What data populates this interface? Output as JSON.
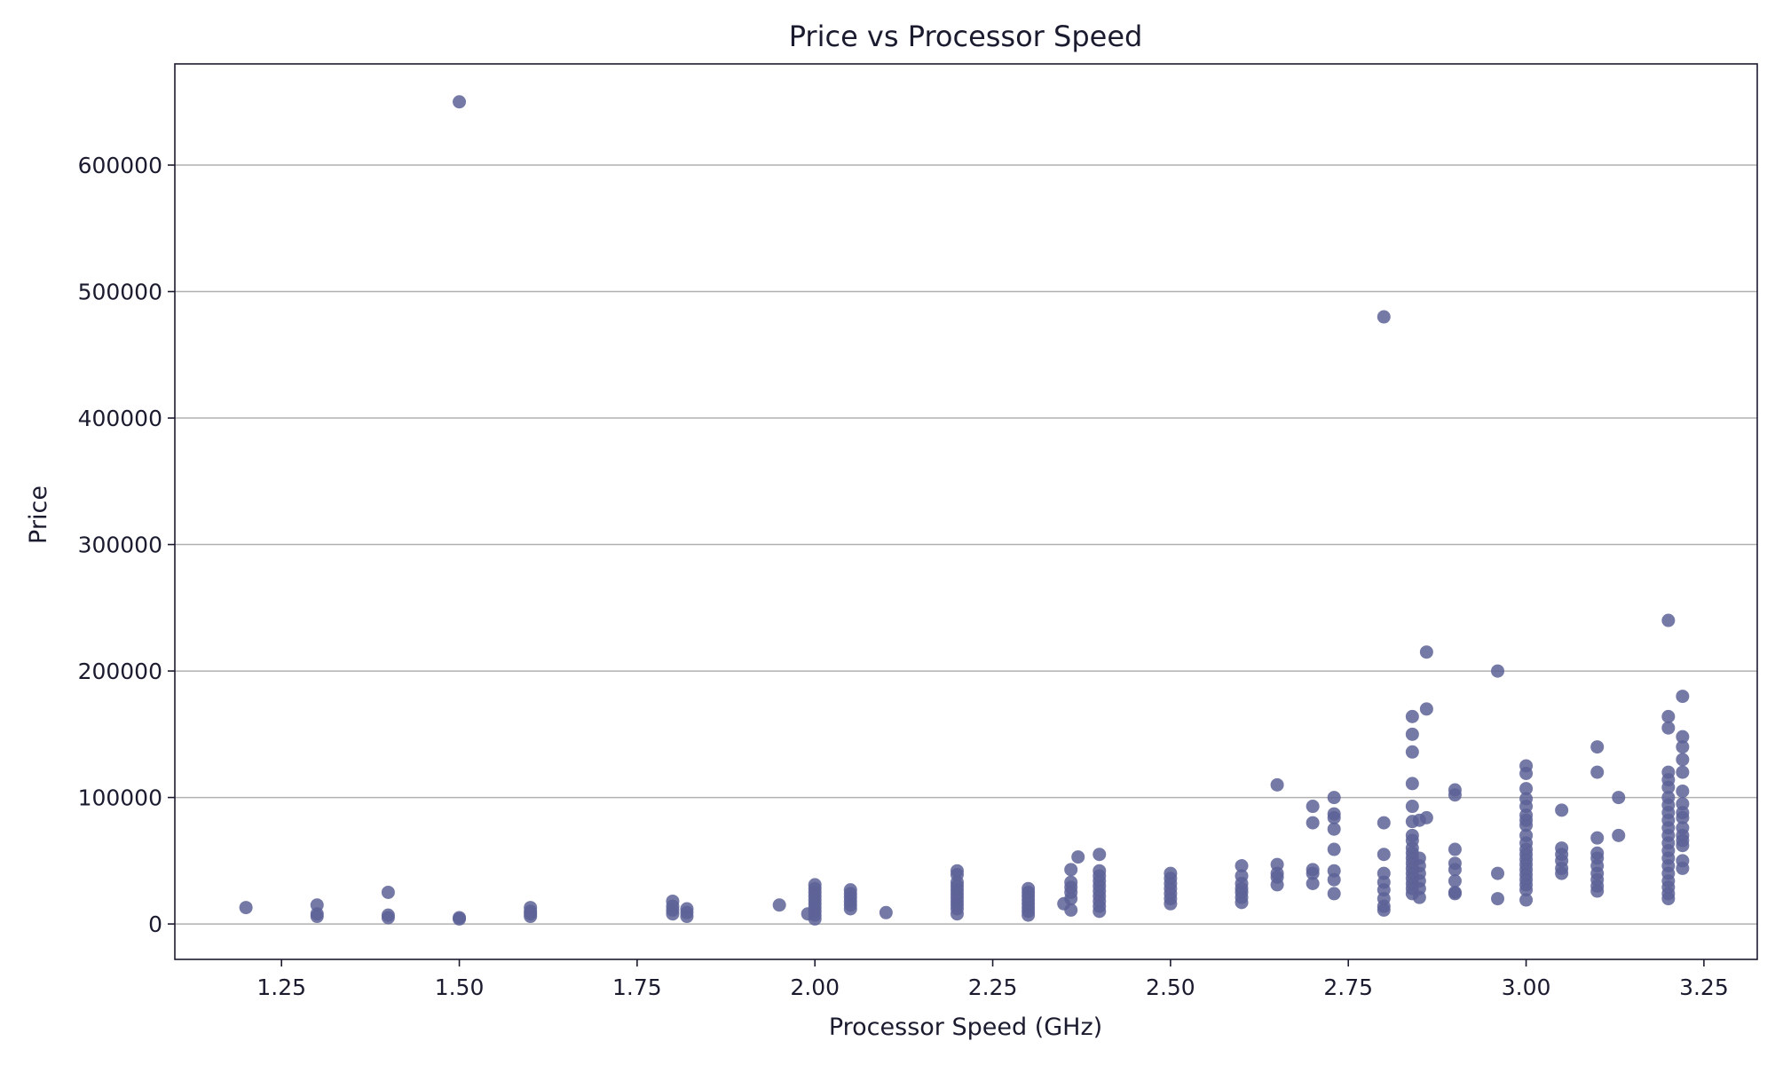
{
  "chart_data": {
    "type": "scatter",
    "title": "Price vs Processor Speed",
    "xlabel": "Processor Speed (GHz)",
    "ylabel": "Price",
    "xlim": [
      1.1,
      3.325
    ],
    "ylim": [
      -28000,
      680000
    ],
    "xticks": [
      "1.25",
      "1.50",
      "1.75",
      "2.00",
      "2.25",
      "2.50",
      "2.75",
      "3.00",
      "3.25"
    ],
    "yticks": [
      "0",
      "100000",
      "200000",
      "300000",
      "400000",
      "500000",
      "600000"
    ],
    "grid": "y-axis horizontal lines",
    "color": "#5d6196",
    "series": [
      {
        "points": [
          [
            1.2,
            13000
          ],
          [
            1.3,
            15000
          ],
          [
            1.3,
            8000
          ],
          [
            1.3,
            6000
          ],
          [
            1.4,
            25000
          ],
          [
            1.4,
            7000
          ],
          [
            1.4,
            5000
          ],
          [
            1.5,
            650000
          ],
          [
            1.5,
            5000
          ],
          [
            1.5,
            4000
          ],
          [
            1.6,
            13000
          ],
          [
            1.6,
            10000
          ],
          [
            1.6,
            8000
          ],
          [
            1.6,
            6000
          ],
          [
            1.8,
            18000
          ],
          [
            1.8,
            14000
          ],
          [
            1.8,
            11000
          ],
          [
            1.8,
            8000
          ],
          [
            1.82,
            12000
          ],
          [
            1.82,
            9000
          ],
          [
            1.82,
            6000
          ],
          [
            1.95,
            15000
          ],
          [
            1.99,
            8000
          ],
          [
            2.0,
            31000
          ],
          [
            2.0,
            28000
          ],
          [
            2.0,
            25000
          ],
          [
            2.0,
            22000
          ],
          [
            2.0,
            19000
          ],
          [
            2.0,
            16000
          ],
          [
            2.0,
            13000
          ],
          [
            2.0,
            10000
          ],
          [
            2.0,
            7000
          ],
          [
            2.0,
            4000
          ],
          [
            2.05,
            27000
          ],
          [
            2.05,
            24000
          ],
          [
            2.05,
            21000
          ],
          [
            2.05,
            18000
          ],
          [
            2.05,
            15000
          ],
          [
            2.05,
            12000
          ],
          [
            2.1,
            9000
          ],
          [
            2.2,
            42000
          ],
          [
            2.2,
            39000
          ],
          [
            2.2,
            33000
          ],
          [
            2.2,
            30000
          ],
          [
            2.2,
            27000
          ],
          [
            2.2,
            24000
          ],
          [
            2.2,
            21000
          ],
          [
            2.2,
            18000
          ],
          [
            2.2,
            15000
          ],
          [
            2.2,
            12000
          ],
          [
            2.2,
            8000
          ],
          [
            2.3,
            28000
          ],
          [
            2.3,
            25000
          ],
          [
            2.3,
            22000
          ],
          [
            2.3,
            19000
          ],
          [
            2.3,
            16000
          ],
          [
            2.3,
            13000
          ],
          [
            2.3,
            10000
          ],
          [
            2.3,
            7000
          ],
          [
            2.35,
            16000
          ],
          [
            2.36,
            43000
          ],
          [
            2.36,
            33000
          ],
          [
            2.36,
            29000
          ],
          [
            2.36,
            25000
          ],
          [
            2.36,
            20000
          ],
          [
            2.36,
            11000
          ],
          [
            2.37,
            53000
          ],
          [
            2.4,
            55000
          ],
          [
            2.4,
            42000
          ],
          [
            2.4,
            38000
          ],
          [
            2.4,
            34000
          ],
          [
            2.4,
            30000
          ],
          [
            2.4,
            26000
          ],
          [
            2.4,
            22000
          ],
          [
            2.4,
            18000
          ],
          [
            2.4,
            14000
          ],
          [
            2.4,
            10000
          ],
          [
            2.5,
            40000
          ],
          [
            2.5,
            36000
          ],
          [
            2.5,
            32000
          ],
          [
            2.5,
            28000
          ],
          [
            2.5,
            24000
          ],
          [
            2.5,
            20000
          ],
          [
            2.5,
            16000
          ],
          [
            2.6,
            46000
          ],
          [
            2.6,
            38000
          ],
          [
            2.6,
            32000
          ],
          [
            2.6,
            28000
          ],
          [
            2.6,
            25000
          ],
          [
            2.6,
            21000
          ],
          [
            2.6,
            17000
          ],
          [
            2.65,
            110000
          ],
          [
            2.65,
            47000
          ],
          [
            2.65,
            40000
          ],
          [
            2.65,
            37000
          ],
          [
            2.65,
            31000
          ],
          [
            2.7,
            93000
          ],
          [
            2.7,
            80000
          ],
          [
            2.7,
            43000
          ],
          [
            2.7,
            40000
          ],
          [
            2.7,
            32000
          ],
          [
            2.73,
            100000
          ],
          [
            2.73,
            87000
          ],
          [
            2.73,
            84000
          ],
          [
            2.73,
            75000
          ],
          [
            2.73,
            59000
          ],
          [
            2.73,
            42000
          ],
          [
            2.73,
            35000
          ],
          [
            2.73,
            24000
          ],
          [
            2.8,
            480000
          ],
          [
            2.8,
            80000
          ],
          [
            2.8,
            55000
          ],
          [
            2.8,
            40000
          ],
          [
            2.8,
            33000
          ],
          [
            2.8,
            27000
          ],
          [
            2.8,
            20000
          ],
          [
            2.8,
            14000
          ],
          [
            2.8,
            11000
          ],
          [
            2.84,
            164000
          ],
          [
            2.84,
            150000
          ],
          [
            2.84,
            136000
          ],
          [
            2.84,
            111000
          ],
          [
            2.84,
            93000
          ],
          [
            2.84,
            81000
          ],
          [
            2.84,
            70000
          ],
          [
            2.84,
            66000
          ],
          [
            2.84,
            60000
          ],
          [
            2.84,
            56000
          ],
          [
            2.84,
            52000
          ],
          [
            2.84,
            48000
          ],
          [
            2.84,
            44000
          ],
          [
            2.84,
            40000
          ],
          [
            2.84,
            36000
          ],
          [
            2.84,
            32000
          ],
          [
            2.84,
            28000
          ],
          [
            2.84,
            24000
          ],
          [
            2.85,
            82000
          ],
          [
            2.85,
            52000
          ],
          [
            2.85,
            46000
          ],
          [
            2.85,
            40000
          ],
          [
            2.85,
            34000
          ],
          [
            2.85,
            28000
          ],
          [
            2.85,
            21000
          ],
          [
            2.86,
            215000
          ],
          [
            2.86,
            170000
          ],
          [
            2.86,
            84000
          ],
          [
            2.9,
            106000
          ],
          [
            2.9,
            102000
          ],
          [
            2.9,
            59000
          ],
          [
            2.9,
            48000
          ],
          [
            2.9,
            43000
          ],
          [
            2.9,
            34000
          ],
          [
            2.9,
            25000
          ],
          [
            2.9,
            24000
          ],
          [
            2.96,
            200000
          ],
          [
            2.96,
            40000
          ],
          [
            2.96,
            20000
          ],
          [
            3.0,
            125000
          ],
          [
            3.0,
            119000
          ],
          [
            3.0,
            107000
          ],
          [
            3.0,
            99000
          ],
          [
            3.0,
            93000
          ],
          [
            3.0,
            86000
          ],
          [
            3.0,
            82000
          ],
          [
            3.0,
            78000
          ],
          [
            3.0,
            70000
          ],
          [
            3.0,
            64000
          ],
          [
            3.0,
            59000
          ],
          [
            3.0,
            55000
          ],
          [
            3.0,
            51000
          ],
          [
            3.0,
            47000
          ],
          [
            3.0,
            43000
          ],
          [
            3.0,
            39000
          ],
          [
            3.0,
            35000
          ],
          [
            3.0,
            31000
          ],
          [
            3.0,
            27000
          ],
          [
            3.0,
            19000
          ],
          [
            3.05,
            90000
          ],
          [
            3.05,
            60000
          ],
          [
            3.05,
            55000
          ],
          [
            3.05,
            50000
          ],
          [
            3.05,
            44000
          ],
          [
            3.05,
            40000
          ],
          [
            3.1,
            140000
          ],
          [
            3.1,
            120000
          ],
          [
            3.1,
            68000
          ],
          [
            3.1,
            56000
          ],
          [
            3.1,
            52000
          ],
          [
            3.1,
            46000
          ],
          [
            3.1,
            40000
          ],
          [
            3.1,
            35000
          ],
          [
            3.1,
            30000
          ],
          [
            3.1,
            26000
          ],
          [
            3.13,
            100000
          ],
          [
            3.13,
            70000
          ],
          [
            3.2,
            240000
          ],
          [
            3.2,
            164000
          ],
          [
            3.2,
            155000
          ],
          [
            3.2,
            120000
          ],
          [
            3.2,
            114000
          ],
          [
            3.2,
            108000
          ],
          [
            3.2,
            100000
          ],
          [
            3.2,
            94000
          ],
          [
            3.2,
            88000
          ],
          [
            3.2,
            82000
          ],
          [
            3.2,
            76000
          ],
          [
            3.2,
            70000
          ],
          [
            3.2,
            64000
          ],
          [
            3.2,
            58000
          ],
          [
            3.2,
            52000
          ],
          [
            3.2,
            46000
          ],
          [
            3.2,
            40000
          ],
          [
            3.2,
            34000
          ],
          [
            3.2,
            29000
          ],
          [
            3.2,
            24000
          ],
          [
            3.2,
            20000
          ],
          [
            3.22,
            180000
          ],
          [
            3.22,
            148000
          ],
          [
            3.22,
            140000
          ],
          [
            3.22,
            130000
          ],
          [
            3.22,
            120000
          ],
          [
            3.22,
            105000
          ],
          [
            3.22,
            95000
          ],
          [
            3.22,
            88000
          ],
          [
            3.22,
            84000
          ],
          [
            3.22,
            76000
          ],
          [
            3.22,
            70000
          ],
          [
            3.22,
            66000
          ],
          [
            3.22,
            62000
          ],
          [
            3.22,
            50000
          ],
          [
            3.22,
            44000
          ]
        ]
      }
    ]
  }
}
